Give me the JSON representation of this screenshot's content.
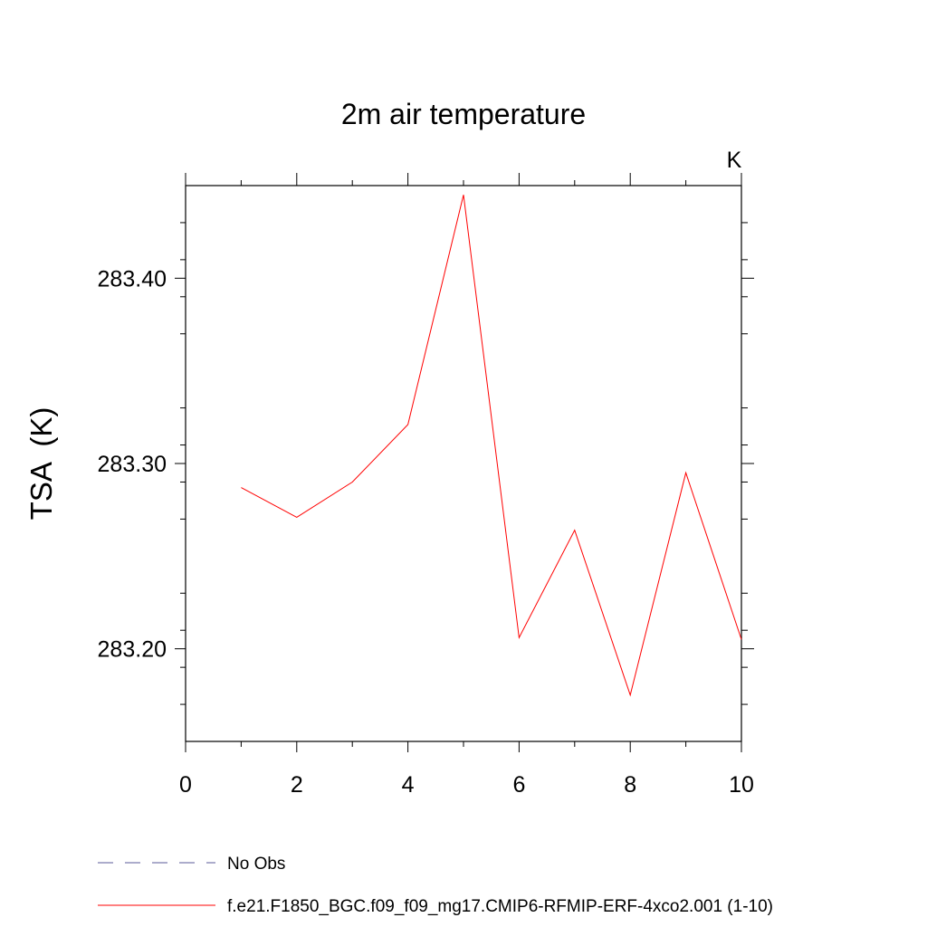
{
  "chart_data": {
    "type": "line",
    "title": "2m air temperature",
    "ylabel": "TSA  (K)",
    "units_label": "K",
    "xlim": [
      0,
      10
    ],
    "ylim": [
      283.15,
      283.45
    ],
    "x_ticks": [
      0,
      2,
      4,
      6,
      8,
      10
    ],
    "x_tick_labels": [
      "0",
      "2",
      "4",
      "6",
      "8",
      "10"
    ],
    "y_ticks": [
      283.2,
      283.3,
      283.4
    ],
    "y_tick_labels": [
      "283.20",
      "283.30",
      "283.40"
    ],
    "grid": false,
    "legend_position": "bottom",
    "series": [
      {
        "name": "f.e21.F1850_BGC.f09_f09_mg17.CMIP6-RFMIP-ERF-4xco2.001 (1-10)",
        "color": "#ff0000",
        "style": "solid",
        "x": [
          1,
          2,
          3,
          4,
          5,
          6,
          7,
          8,
          9,
          10
        ],
        "y": [
          283.287,
          283.271,
          283.29,
          283.321,
          283.445,
          283.206,
          283.264,
          283.175,
          283.295,
          283.205
        ]
      }
    ],
    "legend": [
      {
        "label": "No Obs",
        "color": "#5a5a9a",
        "style": "dashed"
      },
      {
        "label": "f.e21.F1850_BGC.f09_f09_mg17.CMIP6-RFMIP-ERF-4xco2.001 (1-10)",
        "color": "#ff0000",
        "style": "solid"
      }
    ]
  }
}
